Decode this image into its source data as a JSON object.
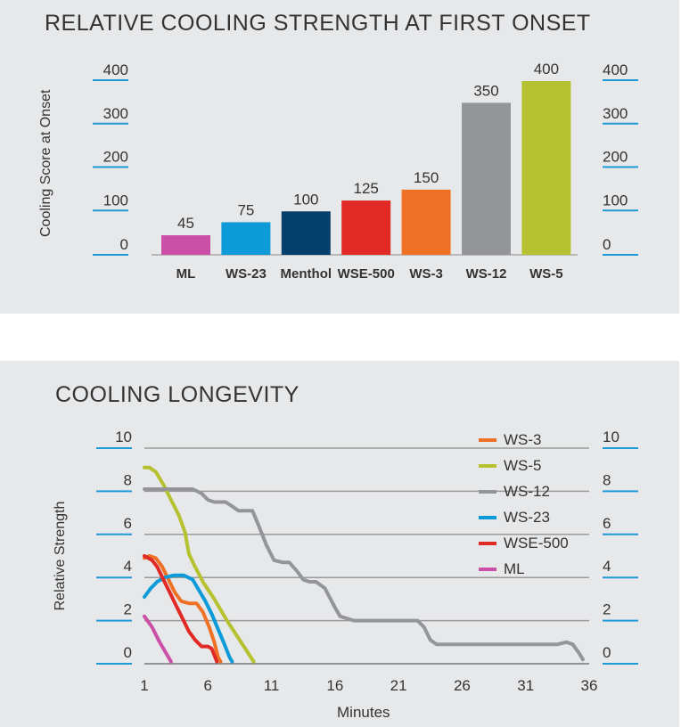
{
  "chart_data": [
    {
      "type": "bar",
      "title": "RELATIVE COOLING STRENGTH AT FIRST ONSET",
      "ylabel": "Cooling Score at Onset",
      "xlabel": "",
      "ylim": [
        0,
        400
      ],
      "yticks": [
        0,
        100,
        200,
        300,
        400
      ],
      "categories": [
        "ML",
        "WS-23",
        "Menthol",
        "WSE-500",
        "WS-3",
        "WS-12",
        "WS-5"
      ],
      "values": [
        45,
        75,
        100,
        125,
        150,
        350,
        400
      ],
      "value_labels": [
        "45",
        "75",
        "100",
        "125",
        "150",
        "350",
        "400"
      ],
      "colors": [
        "#cc4fa7",
        "#0c9bd8",
        "#053f6b",
        "#e12a26",
        "#ef7125",
        "#949598",
        "#b6c12f"
      ],
      "grid": false,
      "legend": "none",
      "secondary_y_axis": true
    },
    {
      "type": "line",
      "title": "COOLING LONGEVITY",
      "ylabel": "Relative Strength",
      "xlabel": "Minutes",
      "xlim": [
        1,
        36
      ],
      "ylim": [
        0,
        10
      ],
      "xticks": [
        1,
        6,
        11,
        16,
        21,
        26,
        31,
        36
      ],
      "yticks": [
        0,
        2,
        4,
        6,
        8,
        10
      ],
      "grid": true,
      "legend": "top-right",
      "series": [
        {
          "name": "WS-3",
          "color": "#ef7125",
          "points": [
            [
              1.0,
              4.9
            ],
            [
              1.4,
              5.0
            ],
            [
              1.9,
              4.9
            ],
            [
              2.4,
              4.5
            ],
            [
              2.9,
              3.9
            ],
            [
              3.4,
              3.3
            ],
            [
              3.9,
              2.9
            ],
            [
              4.5,
              2.8
            ],
            [
              5.1,
              2.8
            ],
            [
              5.6,
              2.4
            ],
            [
              6.1,
              1.7
            ],
            [
              6.5,
              1.0
            ],
            [
              6.8,
              0.3
            ],
            [
              7.0,
              0.1
            ]
          ]
        },
        {
          "name": "WS-5",
          "color": "#b6c12f",
          "points": [
            [
              1.0,
              9.1
            ],
            [
              1.4,
              9.1
            ],
            [
              1.9,
              8.9
            ],
            [
              2.5,
              8.3
            ],
            [
              3.1,
              7.6
            ],
            [
              3.7,
              6.9
            ],
            [
              4.2,
              6.1
            ],
            [
              4.5,
              5.1
            ],
            [
              4.9,
              4.6
            ],
            [
              5.6,
              3.8
            ],
            [
              6.5,
              3.0
            ],
            [
              7.5,
              2.0
            ],
            [
              8.5,
              1.1
            ],
            [
              9.6,
              0.1
            ]
          ]
        },
        {
          "name": "WS-12",
          "color": "#949598",
          "points": [
            [
              1.0,
              8.1
            ],
            [
              4.0,
              8.1
            ],
            [
              4.8,
              8.1
            ],
            [
              5.5,
              7.9
            ],
            [
              6.0,
              7.6
            ],
            [
              6.5,
              7.5
            ],
            [
              7.4,
              7.5
            ],
            [
              7.9,
              7.3
            ],
            [
              8.4,
              7.1
            ],
            [
              9.5,
              7.1
            ],
            [
              10.0,
              6.4
            ],
            [
              10.6,
              5.5
            ],
            [
              11.2,
              4.8
            ],
            [
              11.9,
              4.7
            ],
            [
              12.4,
              4.7
            ],
            [
              13.0,
              4.3
            ],
            [
              13.5,
              3.9
            ],
            [
              14.0,
              3.8
            ],
            [
              14.5,
              3.8
            ],
            [
              15.2,
              3.5
            ],
            [
              16.0,
              2.6
            ],
            [
              16.4,
              2.2
            ],
            [
              17.5,
              2.0
            ],
            [
              22.5,
              2.0
            ],
            [
              23.0,
              1.7
            ],
            [
              23.5,
              1.1
            ],
            [
              24.0,
              0.9
            ],
            [
              25.0,
              0.9
            ],
            [
              33.5,
              0.9
            ],
            [
              34.2,
              1.0
            ],
            [
              34.7,
              0.9
            ],
            [
              35.2,
              0.5
            ],
            [
              35.5,
              0.2
            ]
          ]
        },
        {
          "name": "WS-23",
          "color": "#0c9bd8",
          "points": [
            [
              1.0,
              3.1
            ],
            [
              1.5,
              3.5
            ],
            [
              2.0,
              3.8
            ],
            [
              2.6,
              4.0
            ],
            [
              3.3,
              4.1
            ],
            [
              4.1,
              4.1
            ],
            [
              4.8,
              3.9
            ],
            [
              5.3,
              3.4
            ],
            [
              5.8,
              2.9
            ],
            [
              6.3,
              2.3
            ],
            [
              6.8,
              1.6
            ],
            [
              7.3,
              0.9
            ],
            [
              7.7,
              0.3
            ],
            [
              7.9,
              0.1
            ]
          ]
        },
        {
          "name": "WSE-500",
          "color": "#e12a26",
          "points": [
            [
              1.0,
              5.0
            ],
            [
              1.6,
              4.8
            ],
            [
              2.0,
              4.5
            ],
            [
              2.5,
              3.9
            ],
            [
              3.0,
              3.3
            ],
            [
              3.5,
              2.7
            ],
            [
              4.0,
              2.1
            ],
            [
              4.5,
              1.5
            ],
            [
              5.0,
              1.1
            ],
            [
              5.5,
              0.8
            ],
            [
              6.0,
              0.8
            ],
            [
              6.3,
              0.7
            ],
            [
              6.5,
              0.4
            ],
            [
              6.7,
              0.1
            ]
          ]
        },
        {
          "name": "ML",
          "color": "#cc4fa7",
          "points": [
            [
              1.0,
              2.2
            ],
            [
              1.6,
              1.7
            ],
            [
              2.2,
              1.0
            ],
            [
              2.7,
              0.5
            ],
            [
              3.1,
              0.1
            ]
          ]
        }
      ]
    }
  ]
}
